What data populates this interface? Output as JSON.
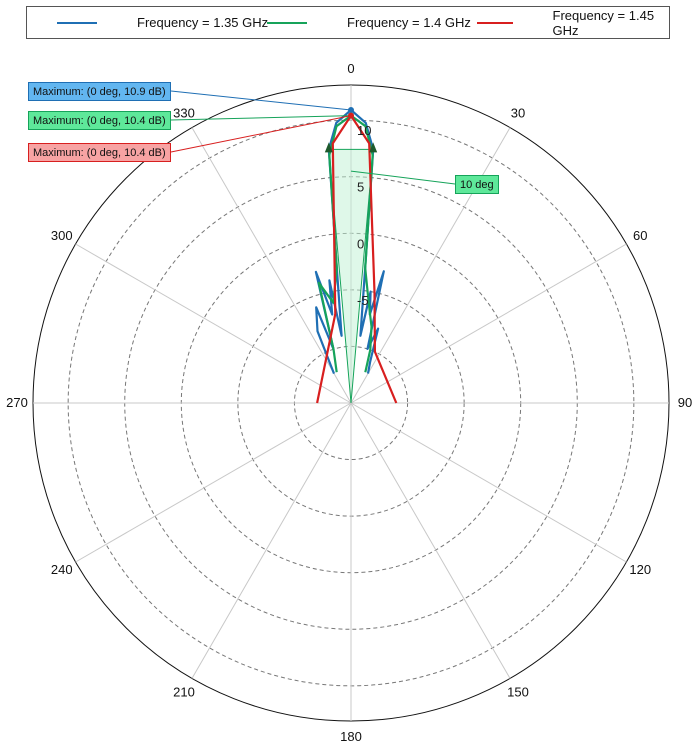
{
  "chart_data": {
    "type": "polar",
    "angle_ticks": [
      "0",
      "30",
      "60",
      "90",
      "120",
      "150",
      "180",
      "210",
      "240",
      "270",
      "300",
      "330"
    ],
    "radial_ticks": [
      "10",
      "5",
      "0",
      "-5"
    ],
    "radial_range_db": [
      -15,
      11
    ],
    "angle_direction": "clockwise",
    "zero_location": "top",
    "legend_placement": "top",
    "series": [
      {
        "name": "Frequency = 1.35 GHz",
        "color": "#1f6fb4",
        "points": [
          [
            -30,
            -12
          ],
          [
            -25,
            -8
          ],
          [
            -20,
            -6
          ],
          [
            -18,
            -10
          ],
          [
            -15,
            -3
          ],
          [
            -12,
            -7
          ],
          [
            -10,
            -4
          ],
          [
            -8,
            -9
          ],
          [
            -6,
            -3
          ],
          [
            -5,
            7.5
          ],
          [
            -3,
            9.8
          ],
          [
            0,
            10.9
          ],
          [
            3,
            9.8
          ],
          [
            5,
            7.5
          ],
          [
            6,
            -3
          ],
          [
            8,
            -9
          ],
          [
            10,
            -5
          ],
          [
            12,
            -7
          ],
          [
            14,
            -3
          ],
          [
            17,
            -10
          ],
          [
            20,
            -8
          ],
          [
            25,
            -11
          ],
          [
            30,
            -12
          ]
        ]
      },
      {
        "name": "Frequency = 1.4 GHz",
        "color": "#16a35a",
        "points": [
          [
            -25,
            -12
          ],
          [
            -18,
            -10
          ],
          [
            -15,
            -4
          ],
          [
            -10,
            -6
          ],
          [
            -6,
            -3
          ],
          [
            -5,
            7
          ],
          [
            -3,
            9.5
          ],
          [
            0,
            10.4
          ],
          [
            3,
            9.5
          ],
          [
            5,
            7
          ],
          [
            6,
            -3
          ],
          [
            10,
            -6
          ],
          [
            15,
            -8
          ],
          [
            20,
            -10
          ],
          [
            25,
            -12
          ]
        ]
      },
      {
        "name": "Frequency = 1.45 GHz",
        "color": "#d81f1f",
        "points": [
          [
            -90,
            -12
          ],
          [
            -10,
            -7
          ],
          [
            -4,
            8
          ],
          [
            0,
            10.4
          ],
          [
            4,
            8
          ],
          [
            12,
            -5
          ],
          [
            25,
            -10
          ],
          [
            90,
            -11
          ]
        ]
      }
    ],
    "annotations": [
      {
        "text": "Maximum: (0 deg, 10.9 dB)",
        "series": 0,
        "fill": "#62b6f0",
        "border": "#1f6fb4",
        "angle": 0,
        "value": 10.9
      },
      {
        "text": "Maximum: (0 deg, 10.4 dB)",
        "series": 1,
        "fill": "#5ee89a",
        "border": "#16a35a",
        "angle": 0,
        "value": 10.4
      },
      {
        "text": "Maximum: (0 deg, 10.4 dB)",
        "series": 2,
        "fill": "#f7a3a3",
        "border": "#d81f1f",
        "angle": 0,
        "value": 10.4
      },
      {
        "text": "10 deg",
        "fill": "#5ee89a",
        "border": "#16a35a",
        "type": "beamwidth",
        "value": 10
      }
    ]
  }
}
